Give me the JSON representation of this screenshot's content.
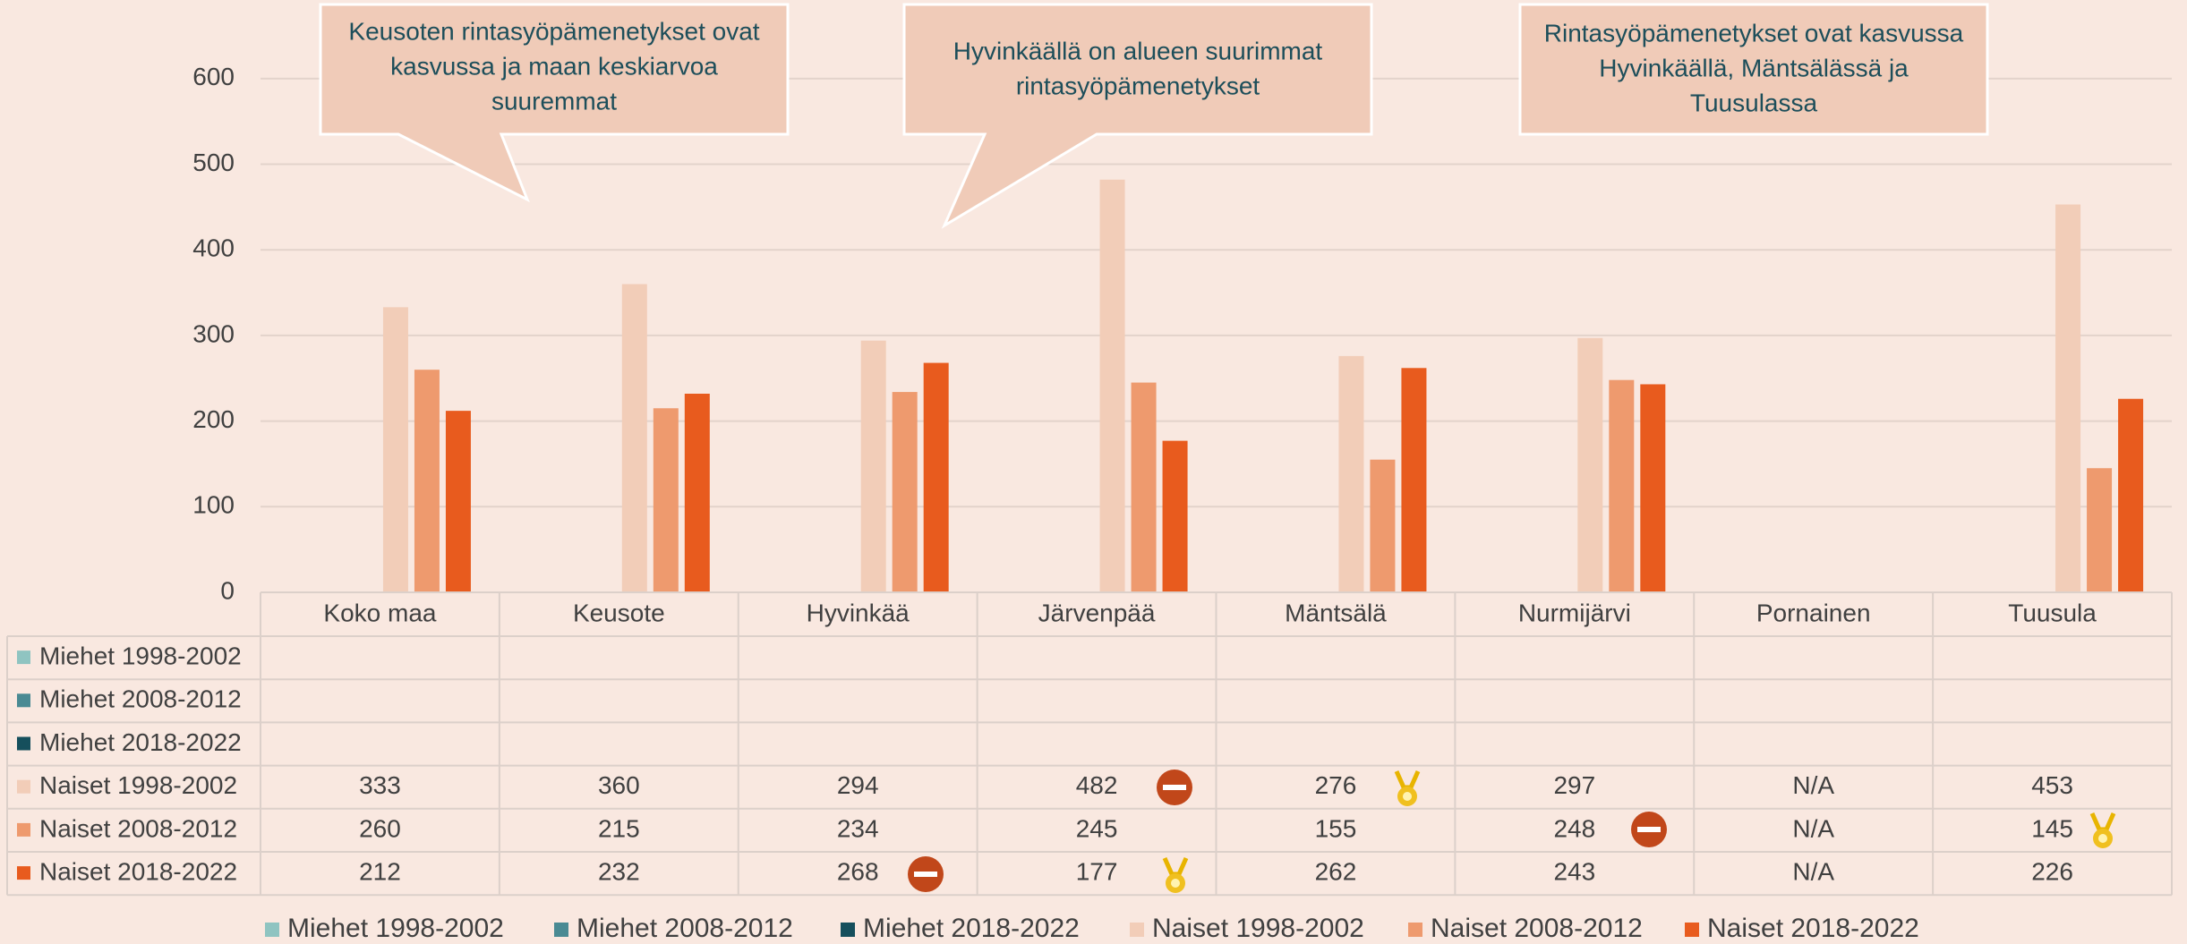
{
  "chart_data": {
    "type": "bar",
    "categories": [
      "Koko maa",
      "Keusote",
      "Hyvinkää",
      "Järvenpää",
      "Mäntsälä",
      "Nurmijärvi",
      "Pornainen",
      "Tuusula"
    ],
    "series": [
      {
        "name": "Miehet 1998-2002",
        "color": "#8fc4c1",
        "values": [
          null,
          null,
          null,
          null,
          null,
          null,
          null,
          null
        ]
      },
      {
        "name": "Miehet 2008-2012",
        "color": "#4a8a93",
        "values": [
          null,
          null,
          null,
          null,
          null,
          null,
          null,
          null
        ]
      },
      {
        "name": "Miehet 2018-2022",
        "color": "#154f5c",
        "values": [
          null,
          null,
          null,
          null,
          null,
          null,
          null,
          null
        ]
      },
      {
        "name": "Naiset 1998-2002",
        "color": "#f2cdb8",
        "values": [
          333,
          360,
          294,
          482,
          276,
          297,
          null,
          453
        ],
        "value_labels": [
          "333",
          "360",
          "294",
          "482",
          "276",
          "297",
          "N/A",
          "453"
        ]
      },
      {
        "name": "Naiset 2008-2012",
        "color": "#ee9a6e",
        "values": [
          260,
          215,
          234,
          245,
          155,
          248,
          null,
          145
        ],
        "value_labels": [
          "260",
          "215",
          "234",
          "245",
          "155",
          "248",
          "N/A",
          "145"
        ]
      },
      {
        "name": "Naiset 2018-2022",
        "color": "#e85b1e",
        "values": [
          212,
          232,
          268,
          177,
          262,
          243,
          null,
          226
        ],
        "value_labels": [
          "212",
          "232",
          "268",
          "177",
          "262",
          "243",
          "N/A",
          "226"
        ]
      }
    ],
    "ylim": [
      0,
      650
    ],
    "yticks": [
      0,
      100,
      200,
      300,
      400,
      500,
      600
    ],
    "grid": true,
    "annotations": [
      {
        "lines": [
          "Keusoten rintasyöpämenetykset ovat",
          "kasvussa ja maan keskiarvoa",
          "suuremmat"
        ]
      },
      {
        "lines": [
          "Hyvinkäällä on alueen suurimmat",
          "rintasyöpämenetykset"
        ]
      },
      {
        "lines": [
          "Rintasyöpämenetykset ovat kasvussa",
          "Hyvinkäällä, Mäntsälässä ja",
          "Tuusulassa"
        ]
      }
    ]
  }
}
